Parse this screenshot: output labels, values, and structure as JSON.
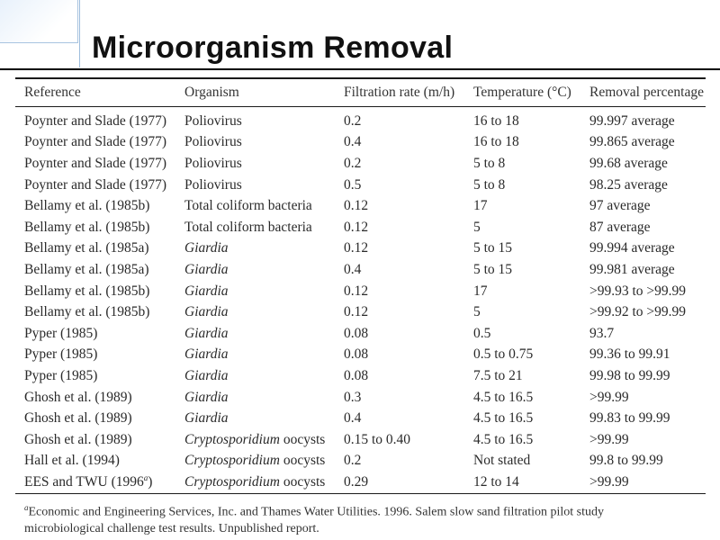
{
  "slide": {
    "title": "Microorganism Removal"
  },
  "table": {
    "headers": [
      "Reference",
      "Organism",
      "Filtration rate (m/h)",
      "Temperature (°C)",
      "Removal percentage"
    ],
    "rows": [
      {
        "ref": "Poynter and Slade (1977)",
        "org": "Poliovirus",
        "org_italic": false,
        "rate": "0.2",
        "temp": "16 to 18",
        "removal": "99.997 average"
      },
      {
        "ref": "Poynter and Slade (1977)",
        "org": "Poliovirus",
        "org_italic": false,
        "rate": "0.4",
        "temp": "16 to 18",
        "removal": "99.865 average"
      },
      {
        "ref": "Poynter and Slade (1977)",
        "org": "Poliovirus",
        "org_italic": false,
        "rate": "0.2",
        "temp": "5 to 8",
        "removal": "99.68 average"
      },
      {
        "ref": "Poynter and Slade (1977)",
        "org": "Poliovirus",
        "org_italic": false,
        "rate": "0.5",
        "temp": "5 to 8",
        "removal": "98.25 average"
      },
      {
        "ref": "Bellamy et al. (1985b)",
        "org": "Total coliform bacteria",
        "org_italic": false,
        "rate": "0.12",
        "temp": "17",
        "removal": "97 average"
      },
      {
        "ref": "Bellamy et al. (1985b)",
        "org": "Total coliform bacteria",
        "org_italic": false,
        "rate": "0.12",
        "temp": "5",
        "removal": "87 average"
      },
      {
        "ref": "Bellamy et al. (1985a)",
        "org": "Giardia",
        "org_italic": true,
        "rate": "0.12",
        "temp": "5 to 15",
        "removal": "99.994 average"
      },
      {
        "ref": "Bellamy et al. (1985a)",
        "org": "Giardia",
        "org_italic": true,
        "rate": "0.4",
        "temp": "5 to 15",
        "removal": "99.981 average"
      },
      {
        "ref": "Bellamy et al. (1985b)",
        "org": "Giardia",
        "org_italic": true,
        "rate": "0.12",
        "temp": "17",
        "removal": ">99.93 to >99.99"
      },
      {
        "ref": "Bellamy et al. (1985b)",
        "org": "Giardia",
        "org_italic": true,
        "rate": "0.12",
        "temp": "5",
        "removal": ">99.92 to >99.99"
      },
      {
        "ref": "Pyper (1985)",
        "org": "Giardia",
        "org_italic": true,
        "rate": "0.08",
        "temp": "0.5",
        "removal": "93.7"
      },
      {
        "ref": "Pyper (1985)",
        "org": "Giardia",
        "org_italic": true,
        "rate": "0.08",
        "temp": "0.5 to 0.75",
        "removal": "99.36 to 99.91"
      },
      {
        "ref": "Pyper (1985)",
        "org": "Giardia",
        "org_italic": true,
        "rate": "0.08",
        "temp": "7.5 to 21",
        "removal": "99.98 to 99.99"
      },
      {
        "ref": "Ghosh et al. (1989)",
        "org": "Giardia",
        "org_italic": true,
        "rate": "0.3",
        "temp": "4.5 to 16.5",
        "removal": ">99.99"
      },
      {
        "ref": "Ghosh et al. (1989)",
        "org": "Giardia",
        "org_italic": true,
        "rate": "0.4",
        "temp": "4.5 to 16.5",
        "removal": "99.83 to 99.99"
      },
      {
        "ref": "Ghosh et al. (1989)",
        "org": "Cryptosporidium",
        "org_suffix": " oocysts",
        "org_italic": true,
        "rate": "0.15 to 0.40",
        "temp": "4.5 to 16.5",
        "removal": ">99.99"
      },
      {
        "ref": "Hall et al. (1994)",
        "org": "Cryptosporidium",
        "org_suffix": " oocysts",
        "org_italic": true,
        "rate": "0.2",
        "temp": "Not stated",
        "removal": "99.8 to 99.99"
      },
      {
        "ref": "EES and TWU (1996",
        "ref_sup": "a",
        "ref_tail": ")",
        "org": "Cryptosporidium",
        "org_suffix": " oocysts",
        "org_italic": true,
        "rate": "0.29",
        "temp": "12 to 14",
        "removal": ">99.99"
      }
    ],
    "footnote": {
      "marker": "a",
      "line1": "Economic and Engineering Services, Inc. and Thames Water Utilities. 1996. Salem slow sand filtration pilot study",
      "line2": "microbiological challenge test results. Unpublished report."
    }
  }
}
